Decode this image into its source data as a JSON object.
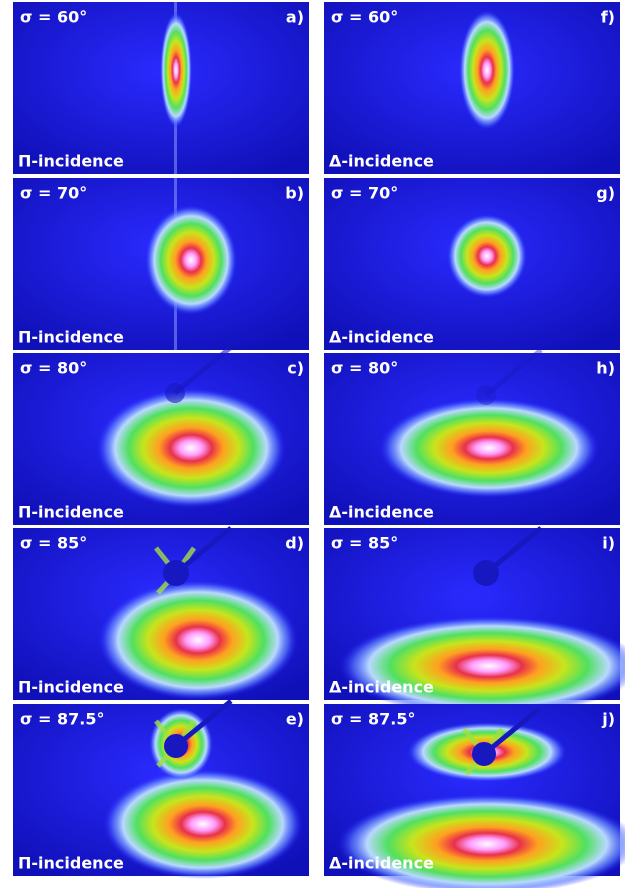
{
  "panels": [
    {
      "sigma": "σ = 60°",
      "letter": "a)",
      "incidence": "Π-incidence"
    },
    {
      "sigma": "σ = 70°",
      "letter": "b)",
      "incidence": "Π-incidence"
    },
    {
      "sigma": "σ = 80°",
      "letter": "c)",
      "incidence": "Π-incidence"
    },
    {
      "sigma": "σ = 85°",
      "letter": "d)",
      "incidence": "Π-incidence"
    },
    {
      "sigma": "σ = 87.5°",
      "letter": "e)",
      "incidence": "Π-incidence"
    },
    {
      "sigma": "σ = 60°",
      "letter": "f)",
      "incidence": "Δ-incidence"
    },
    {
      "sigma": "σ = 70°",
      "letter": "g)",
      "incidence": "Δ-incidence"
    },
    {
      "sigma": "σ = 80°",
      "letter": "h)",
      "incidence": "Δ-incidence"
    },
    {
      "sigma": "σ = 85°",
      "letter": "i)",
      "incidence": "Δ-incidence"
    },
    {
      "sigma": "σ = 87.5°",
      "letter": "j)",
      "incidence": "Δ-incidence"
    }
  ]
}
